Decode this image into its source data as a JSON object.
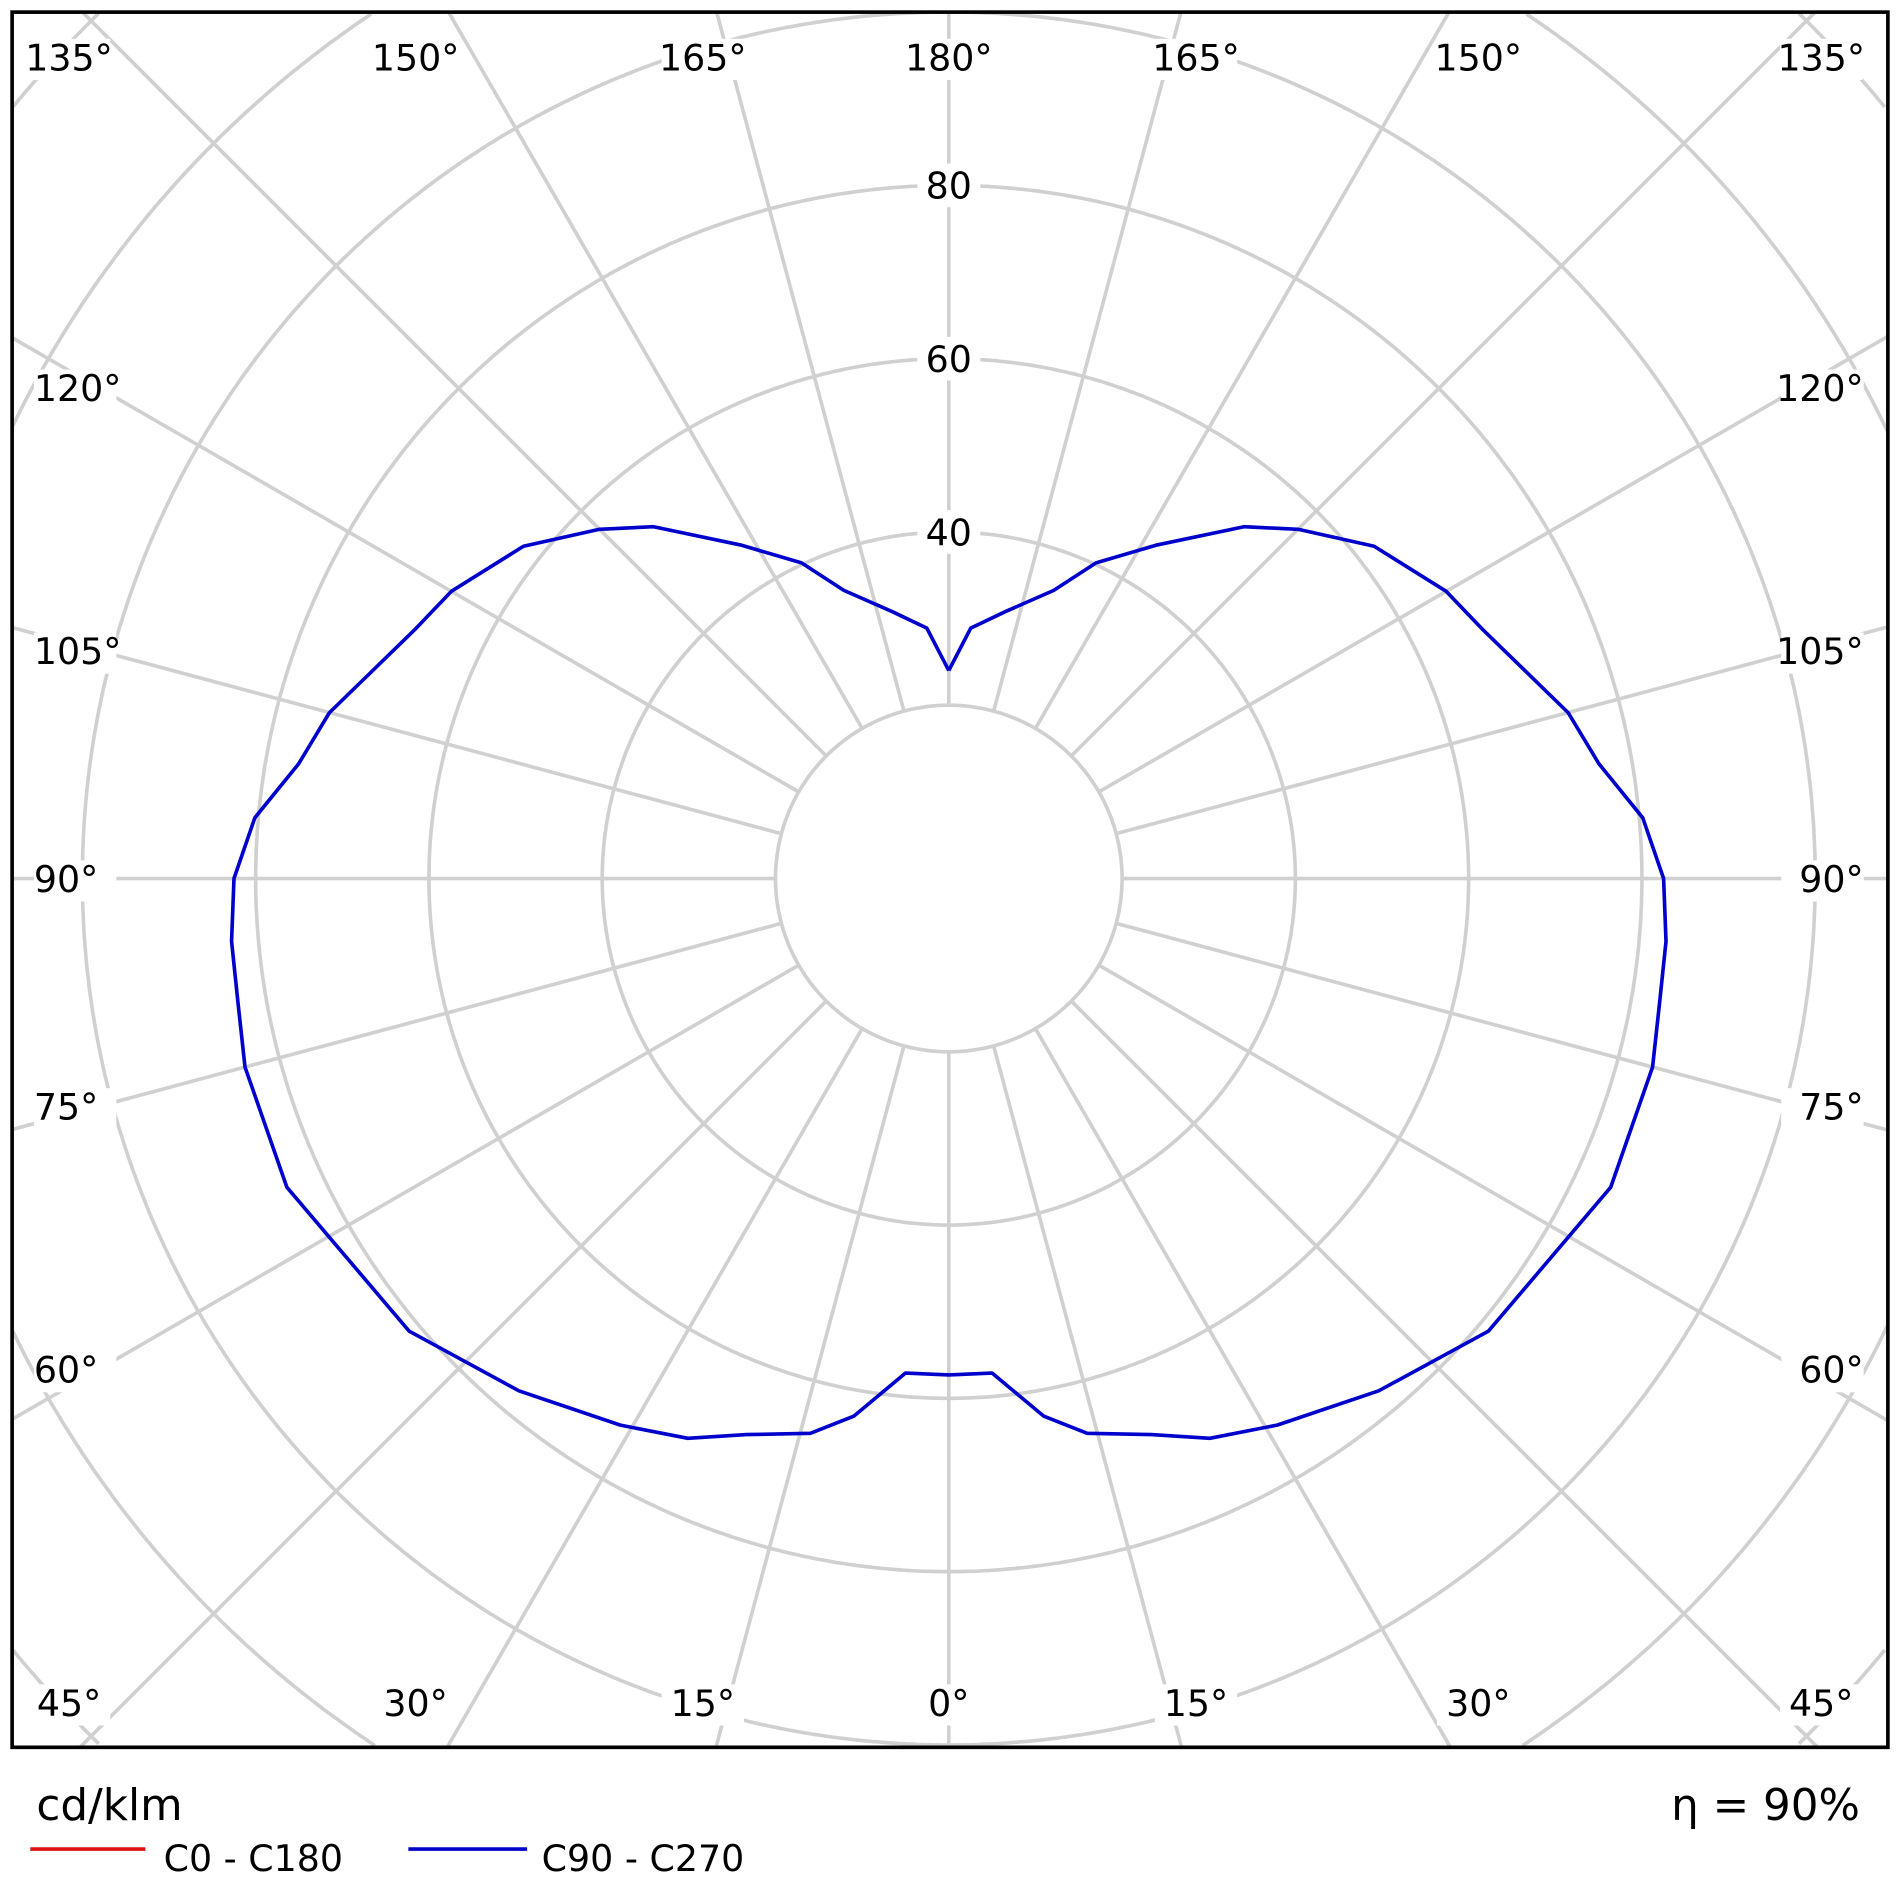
{
  "chart_data": {
    "type": "polar-line",
    "unit_label": "cd/klm",
    "efficiency_label": "η = 90%",
    "radial_ticks": [
      20,
      40,
      60,
      80,
      100,
      120,
      140
    ],
    "radial_tick_labels": [
      "40",
      "60",
      "80"
    ],
    "radial_label_values": [
      40,
      60,
      80
    ],
    "angle_labels": {
      "top": [
        "135°",
        "150°",
        "165°",
        "180°",
        "165°",
        "150°",
        "135°"
      ],
      "left": [
        "120°",
        "105°",
        "90°",
        "75°",
        "60°"
      ],
      "right": [
        "120°",
        "105°",
        "90°",
        "75°",
        "60°"
      ],
      "bottom": [
        "45°",
        "30°",
        "15°",
        "0°",
        "15°",
        "30°",
        "45°"
      ]
    },
    "grid": true,
    "legend_placement": "bottom-left",
    "series": [
      {
        "name": "C0 - C180",
        "color": "#dd1111",
        "gamma": [],
        "values": []
      },
      {
        "name": "C90 - C270",
        "color": "#0000cc",
        "gamma": [
          0,
          5,
          10,
          14,
          20,
          25,
          31,
          40,
          50,
          65,
          75,
          80,
          85,
          90,
          95,
          100,
          105,
          115,
          120,
          128,
          135,
          140,
          148,
          155,
          160,
          168,
          175,
          180
        ],
        "values": [
          57.3,
          57.3,
          63,
          66,
          68.3,
          71.3,
          73.6,
          77.2,
          81.3,
          84.3,
          84.1,
          83.3,
          83.1,
          82.5,
          80.4,
          76.2,
          74,
          68,
          66.3,
          62.3,
          57,
          53,
          45.4,
          40.2,
          35.4,
          31.5,
          29,
          24
        ],
        "symmetric": true
      }
    ]
  }
}
